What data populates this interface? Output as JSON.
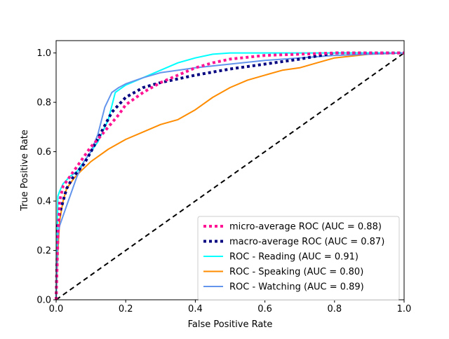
{
  "chart_data": {
    "type": "line",
    "title": "",
    "xlabel": "False Positive Rate",
    "ylabel": "True Positive Rate",
    "xlim": [
      0,
      1
    ],
    "ylim": [
      0,
      1.05
    ],
    "xticks": [
      "0.0",
      "0.2",
      "0.4",
      "0.6",
      "0.8",
      "1.0"
    ],
    "yticks": [
      "0.0",
      "0.2",
      "0.4",
      "0.6",
      "0.8",
      "1.0"
    ],
    "grid": false,
    "legend_position": "lower-right",
    "series": [
      {
        "name": "micro-average ROC (AUC = 0.88)",
        "color": "#ff1493",
        "style": "dotted",
        "x": [
          0,
          0.005,
          0.01,
          0.02,
          0.04,
          0.06,
          0.08,
          0.1,
          0.12,
          0.15,
          0.18,
          0.2,
          0.25,
          0.3,
          0.35,
          0.4,
          0.45,
          0.5,
          0.6,
          0.7,
          0.8,
          0.9,
          1.0
        ],
        "y": [
          0,
          0.25,
          0.4,
          0.46,
          0.5,
          0.54,
          0.58,
          0.62,
          0.65,
          0.7,
          0.75,
          0.79,
          0.84,
          0.88,
          0.91,
          0.94,
          0.96,
          0.975,
          0.99,
          0.995,
          1.0,
          1.0,
          1.0
        ]
      },
      {
        "name": "macro-average ROC (AUC = 0.87)",
        "color": "#000080",
        "style": "dotted",
        "x": [
          0,
          0.005,
          0.01,
          0.03,
          0.05,
          0.08,
          0.1,
          0.13,
          0.16,
          0.2,
          0.25,
          0.3,
          0.4,
          0.5,
          0.6,
          0.7,
          0.8,
          0.9,
          1.0
        ],
        "y": [
          0,
          0.3,
          0.35,
          0.45,
          0.5,
          0.55,
          0.6,
          0.68,
          0.76,
          0.82,
          0.86,
          0.88,
          0.91,
          0.935,
          0.955,
          0.975,
          1.0,
          1.0,
          1.0
        ]
      },
      {
        "name": "ROC - Reading (AUC = 0.91)",
        "color": "#00ffff",
        "style": "solid",
        "x": [
          0,
          0.005,
          0.01,
          0.02,
          0.04,
          0.06,
          0.08,
          0.1,
          0.12,
          0.15,
          0.17,
          0.2,
          0.25,
          0.3,
          0.35,
          0.4,
          0.45,
          0.5,
          0.6,
          0.7,
          0.8,
          0.9,
          1.0
        ],
        "y": [
          0,
          0.42,
          0.44,
          0.47,
          0.5,
          0.52,
          0.56,
          0.6,
          0.64,
          0.73,
          0.84,
          0.87,
          0.9,
          0.93,
          0.96,
          0.98,
          0.995,
          1.0,
          1.0,
          1.0,
          1.0,
          1.0,
          1.0
        ]
      },
      {
        "name": "ROC - Speaking (AUC = 0.80)",
        "color": "#ff8c00",
        "style": "solid",
        "x": [
          0,
          0.005,
          0.01,
          0.02,
          0.03,
          0.05,
          0.07,
          0.1,
          0.15,
          0.2,
          0.25,
          0.3,
          0.35,
          0.4,
          0.45,
          0.5,
          0.55,
          0.6,
          0.65,
          0.7,
          0.75,
          0.8,
          0.9,
          1.0
        ],
        "y": [
          0,
          0.2,
          0.32,
          0.4,
          0.45,
          0.49,
          0.52,
          0.56,
          0.61,
          0.65,
          0.68,
          0.71,
          0.73,
          0.77,
          0.82,
          0.86,
          0.89,
          0.91,
          0.93,
          0.94,
          0.96,
          0.98,
          0.995,
          1.0
        ]
      },
      {
        "name": "ROC - Watching (AUC = 0.89)",
        "color": "#6495ed",
        "style": "solid",
        "x": [
          0,
          0.005,
          0.01,
          0.02,
          0.04,
          0.06,
          0.08,
          0.1,
          0.12,
          0.14,
          0.16,
          0.18,
          0.2,
          0.25,
          0.3,
          0.4,
          0.5,
          0.6,
          0.7,
          0.8,
          0.9,
          1.0
        ],
        "y": [
          0,
          0.26,
          0.3,
          0.34,
          0.42,
          0.5,
          0.56,
          0.6,
          0.67,
          0.78,
          0.84,
          0.86,
          0.875,
          0.9,
          0.92,
          0.94,
          0.955,
          0.97,
          0.98,
          0.99,
          0.995,
          1.0
        ]
      },
      {
        "name": "",
        "color": "#000000",
        "style": "dashed",
        "x": [
          0,
          1
        ],
        "y": [
          0,
          1
        ]
      }
    ]
  }
}
